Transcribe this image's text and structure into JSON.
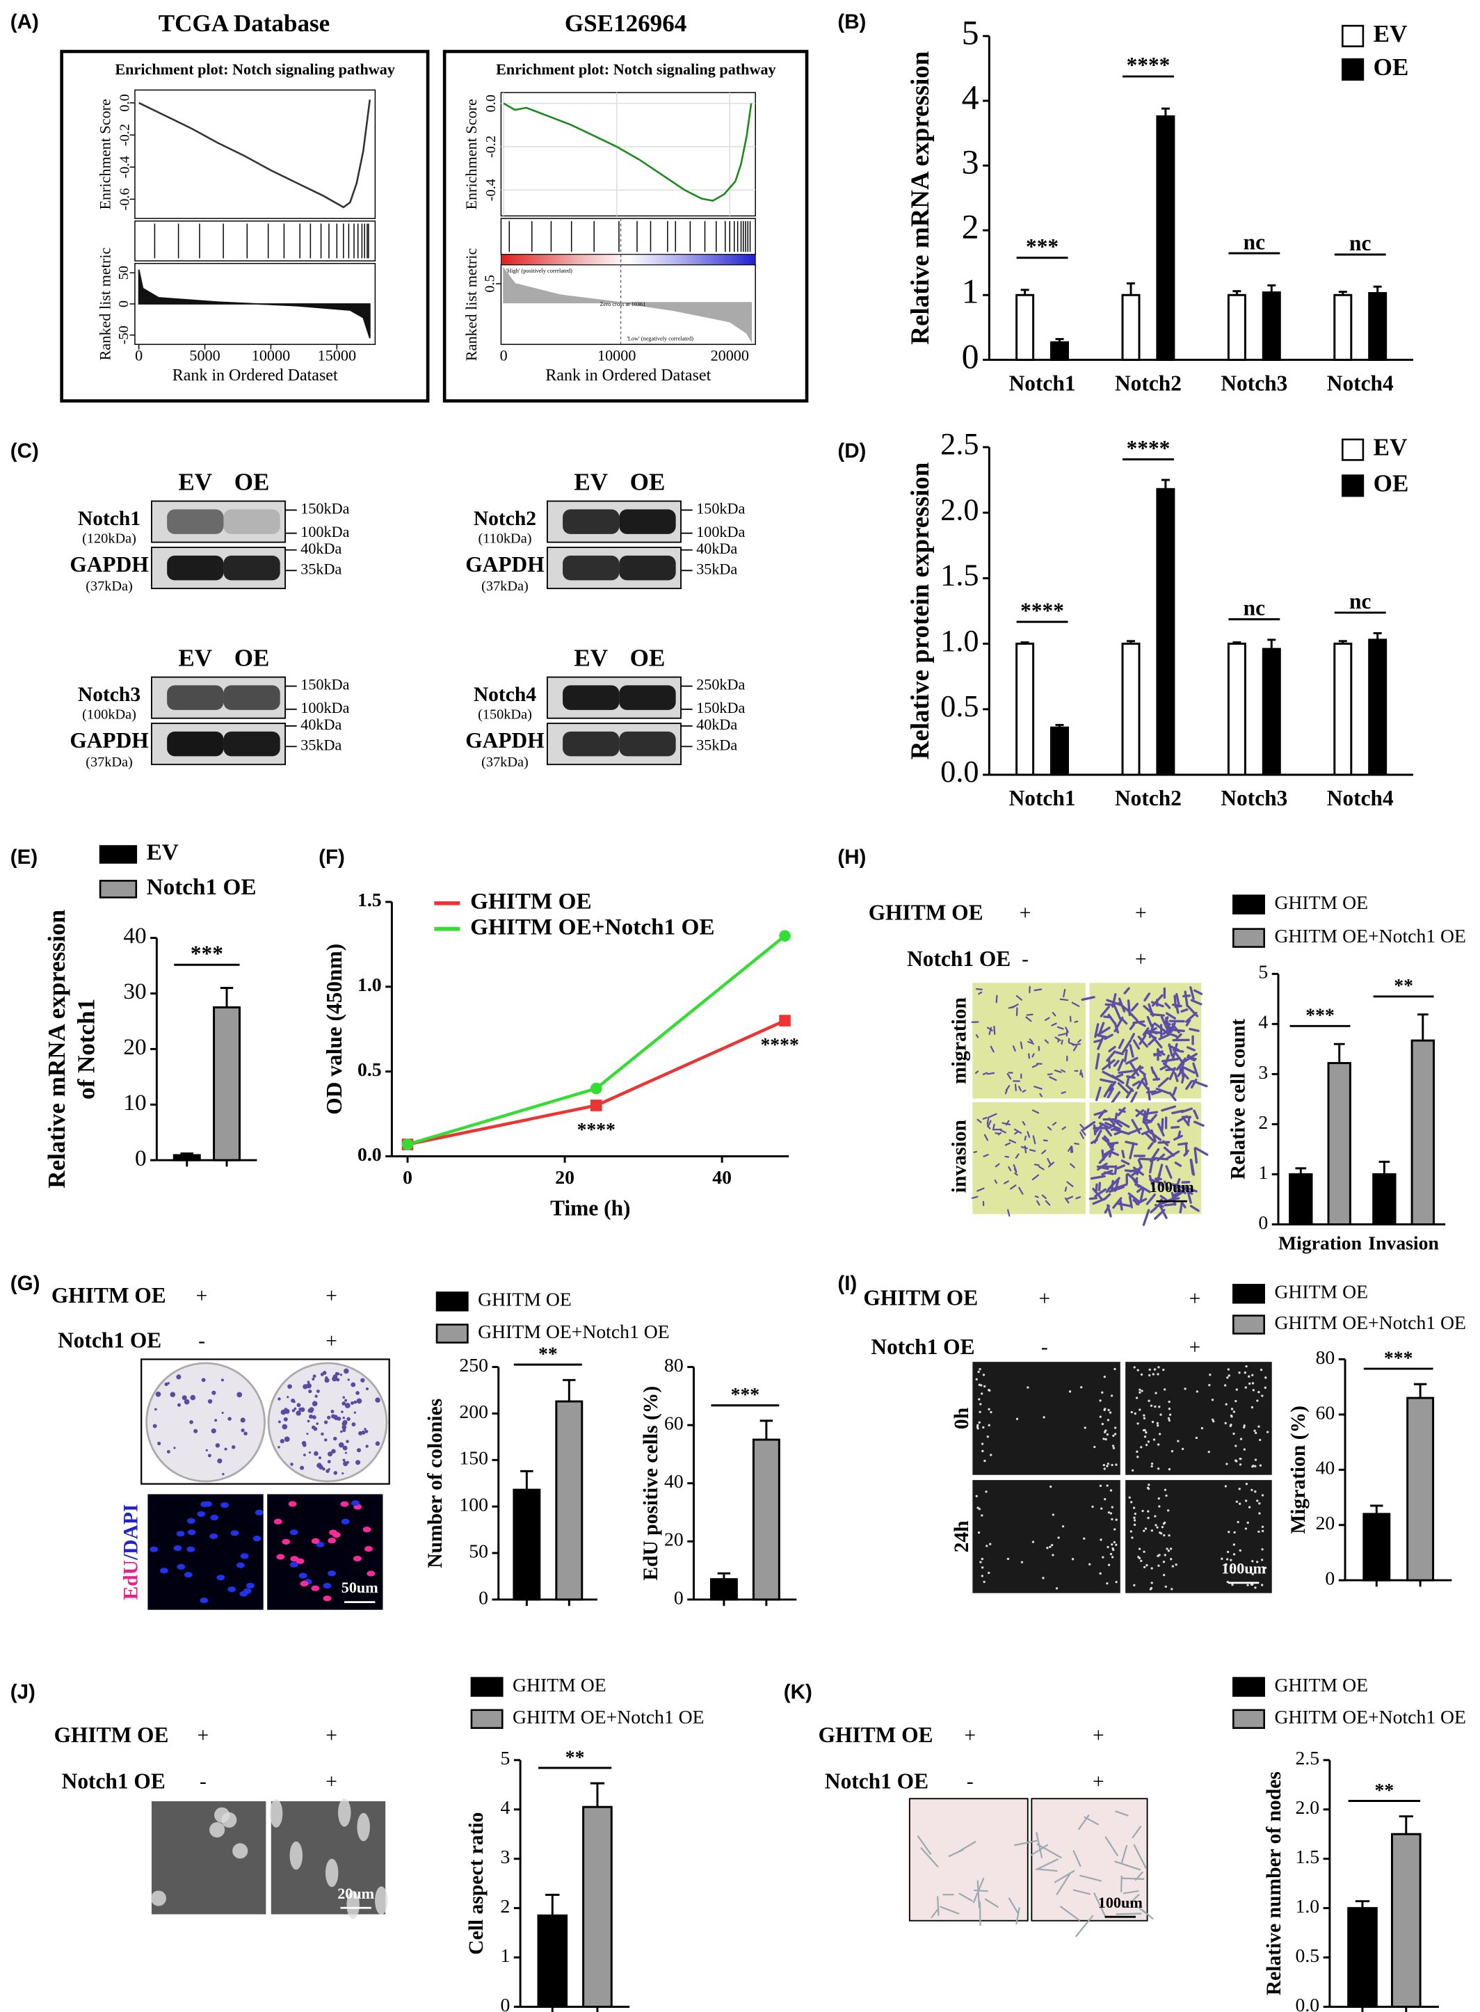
{
  "panel_labels": [
    "(A)",
    "(B)",
    "(C)",
    "(D)",
    "(E)",
    "(F)",
    "(H)",
    "(G)",
    "(I)",
    "(J)",
    "(K)"
  ],
  "chart_data": [
    {
      "type": "gsea",
      "header": "TCGA Database",
      "title": "Enrichment plot: Notch signaling pathway",
      "ylabel": "Enrichment Score",
      "y2label": "Ranked list metric",
      "xlabel": "Rank in Ordered Dataset",
      "x": [
        0,
        2000,
        4000,
        6000,
        8000,
        10000,
        12000,
        14000,
        15500,
        16000,
        16500,
        17000,
        17500
      ],
      "values": [
        0,
        -0.08,
        -0.16,
        -0.25,
        -0.33,
        -0.42,
        -0.5,
        -0.58,
        -0.65,
        -0.62,
        -0.5,
        -0.3,
        0.02
      ],
      "color": "#333333",
      "hits": [
        1200,
        3000,
        4600,
        6400,
        8200,
        9800,
        11000,
        12200,
        13000,
        13800,
        14400,
        15000,
        15500,
        15900,
        16300,
        16600,
        16900,
        17100,
        17300,
        17400
      ],
      "metric_x": [
        0,
        300,
        1500,
        6000,
        12000,
        16000,
        17000,
        17500
      ],
      "metric": [
        55,
        25,
        10,
        3,
        -3,
        -10,
        -22,
        -55
      ],
      "xlim": [
        -300,
        17900
      ],
      "xticks": [
        0,
        5000,
        10000,
        15000
      ],
      "ylim": [
        -0.72,
        0.08
      ],
      "yticks": [
        -0.6,
        -0.4,
        -0.2,
        {
          "value": 0,
          "label": "0.0"
        }
      ],
      "y2lim": [
        -65,
        65
      ],
      "y2ticks": [
        -50,
        0,
        50
      ],
      "grid": false
    },
    {
      "type": "gsea",
      "header": "GSE126964",
      "title": "Enrichment plot: Notch signaling pathway",
      "ylabel": "Enrichment Score",
      "y2label": "Ranked list metric",
      "xlabel": "Rank in Ordered Dataset",
      "x": [
        0,
        1000,
        2000,
        4000,
        6000,
        8000,
        10000,
        12000,
        14000,
        16000,
        17500,
        18500,
        19500,
        20500,
        21000,
        21500,
        21900
      ],
      "values": [
        0,
        -0.03,
        -0.02,
        -0.06,
        -0.1,
        -0.15,
        -0.2,
        -0.26,
        -0.33,
        -0.4,
        -0.44,
        -0.45,
        -0.42,
        -0.36,
        -0.28,
        -0.15,
        0
      ],
      "color": "#1a8a1a",
      "hits": [
        500,
        2500,
        4200,
        6000,
        8000,
        10200,
        11800,
        13000,
        14500,
        15200,
        16500,
        17800,
        18800,
        19600,
        20000,
        20400,
        20700,
        21000,
        21200,
        21400,
        21600,
        21800
      ],
      "metric_x": [
        0,
        1000,
        5000,
        10361,
        15000,
        20000,
        21500,
        21900
      ],
      "metric": [
        0.9,
        0.5,
        0.2,
        0,
        -0.2,
        -0.5,
        -0.8,
        -1.0
      ],
      "zero_cross": 10361,
      "annotations": [
        "'High' (positively correlated)",
        "Zero cross at 10361",
        "'Low' (negatively correlated)"
      ],
      "xlim": [
        -230,
        22270
      ],
      "xticks": [
        0,
        10000,
        20000
      ],
      "ylim": [
        -0.52,
        0.05
      ],
      "yticks": [
        {
          "value": 0,
          "label": "0.0"
        },
        -0.2,
        -0.4
      ],
      "y2lim": [
        -1.1,
        1.0
      ],
      "y2ticks": [
        0.5
      ],
      "grid": true
    },
    {
      "type": "bar",
      "ylabel": "Relative mRNA expression",
      "categories": [
        "Notch1",
        "Notch2",
        "Notch3",
        "Notch4"
      ],
      "series": [
        {
          "name": "EV",
          "color": "#ffffff",
          "values": [
            1,
            1,
            1,
            1
          ],
          "errors": [
            0.08,
            0.18,
            0.06,
            0.05
          ]
        },
        {
          "name": "OE",
          "color": "#000000",
          "values": [
            0.27,
            3.76,
            1.04,
            1.03
          ],
          "errors": [
            0.05,
            0.12,
            0.11,
            0.1
          ]
        }
      ],
      "ylim": [
        0,
        5
      ],
      "yticks": [
        0,
        1,
        2,
        3,
        4,
        5
      ],
      "annotations": [
        "***",
        "****",
        "nc",
        "nc"
      ]
    },
    {
      "type": "bar",
      "ylabel": "Relative protein expression",
      "categories": [
        "Notch1",
        "Notch2",
        "Notch3",
        "Notch4"
      ],
      "series": [
        {
          "name": "EV",
          "color": "#ffffff",
          "values": [
            1,
            1,
            1,
            1
          ],
          "errors": [
            0.01,
            0.02,
            0.01,
            0.02
          ]
        },
        {
          "name": "OE",
          "color": "#000000",
          "values": [
            0.36,
            2.18,
            0.96,
            1.03
          ],
          "errors": [
            0.02,
            0.07,
            0.07,
            0.05
          ]
        }
      ],
      "ylim": [
        0,
        2.5
      ],
      "yticks": [
        {
          "value": 0,
          "label": "0.0"
        },
        {
          "value": 0.5,
          "label": "0.5"
        },
        {
          "value": 1,
          "label": "1.0"
        },
        {
          "value": 1.5,
          "label": "1.5"
        },
        {
          "value": 2,
          "label": "2.0"
        },
        {
          "value": 2.5,
          "label": "2.5"
        }
      ],
      "annotations": [
        "****",
        "****",
        "nc",
        "nc"
      ]
    },
    {
      "type": "bar",
      "ylabel": [
        "Relative mRNA expression",
        "of Notch1"
      ],
      "categories": [
        null
      ],
      "series": [
        {
          "name": "EV",
          "color": "#000000",
          "values": [
            0.9
          ],
          "errors": [
            0.3
          ]
        },
        {
          "name": "Notch1 OE",
          "color": "#999999",
          "values": [
            27.5
          ],
          "errors": [
            3.5
          ]
        }
      ],
      "ylim": [
        0,
        40
      ],
      "yticks": [
        0,
        10,
        20,
        30,
        40
      ],
      "annotations": [
        "***"
      ]
    },
    {
      "type": "line",
      "ylabel": "OD value (450nm)",
      "xlabel": "Time (h)",
      "x": [
        0,
        24,
        48
      ],
      "series": [
        {
          "name": "GHITM OE",
          "color": "#ee3333",
          "marker": "square",
          "values": [
            0.07,
            0.3,
            0.8
          ],
          "annotations": [
            null,
            "****",
            "****"
          ]
        },
        {
          "name": "GHITM OE+Notch1 OE",
          "color": "#33dd33",
          "marker": "circle",
          "values": [
            0.07,
            0.4,
            1.3
          ]
        }
      ],
      "xlim": [
        -2,
        48.5
      ],
      "xticks": [
        0,
        20,
        40
      ],
      "ylim": [
        0,
        1.5
      ],
      "yticks": [
        {
          "value": 0,
          "label": "0.0"
        },
        {
          "value": 0.5,
          "label": "0.5"
        },
        {
          "value": 1,
          "label": "1.0"
        },
        {
          "value": 1.5,
          "label": "1.5"
        }
      ]
    },
    {
      "type": "bar",
      "ylabel": "Relative cell count",
      "categories": [
        "Migration",
        "Invasion"
      ],
      "series": [
        {
          "name": "GHITM OE",
          "color": "#000000",
          "values": [
            1,
            1
          ],
          "errors": [
            0.12,
            0.25
          ]
        },
        {
          "name": "GHITM OE+Notch1 OE",
          "color": "#999999",
          "values": [
            3.22,
            3.67
          ],
          "errors": [
            0.38,
            0.52
          ]
        }
      ],
      "ylim": [
        0,
        5
      ],
      "yticks": [
        0,
        1,
        2,
        3,
        4,
        5
      ],
      "annotations": [
        "***",
        "**"
      ]
    },
    {
      "type": "bar",
      "ylabel": "Number of colonies",
      "categories": [
        null
      ],
      "series": [
        {
          "name": "GHITM OE",
          "color": "#000000",
          "values": [
            118
          ],
          "errors": [
            20
          ]
        },
        {
          "name": "GHITM OE+Notch1 OE",
          "color": "#999999",
          "values": [
            213
          ],
          "errors": [
            23
          ]
        }
      ],
      "ylim": [
        0,
        250
      ],
      "yticks": [
        0,
        50,
        100,
        150,
        200,
        250
      ],
      "annotations": [
        "**"
      ]
    },
    {
      "type": "bar",
      "ylabel": "EdU positive cells (%)",
      "categories": [
        null
      ],
      "series": [
        {
          "color": "#000000",
          "values": [
            7
          ],
          "errors": [
            2
          ]
        },
        {
          "color": "#999999",
          "values": [
            55
          ],
          "errors": [
            6.5
          ]
        }
      ],
      "ylim": [
        0,
        80
      ],
      "yticks": [
        0,
        20,
        40,
        60,
        80
      ],
      "annotations": [
        "***"
      ]
    },
    {
      "type": "bar",
      "ylabel": "Migration (%)",
      "categories": [
        null
      ],
      "series": [
        {
          "name": "GHITM OE",
          "color": "#000000",
          "values": [
            24
          ],
          "errors": [
            3
          ]
        },
        {
          "name": "GHITM OE+Notch1 OE",
          "color": "#999999",
          "values": [
            66
          ],
          "errors": [
            5
          ]
        }
      ],
      "ylim": [
        0,
        80
      ],
      "yticks": [
        0,
        20,
        40,
        60,
        80
      ],
      "annotations": [
        "***"
      ]
    },
    {
      "type": "bar",
      "ylabel": "Cell aspect ratio",
      "categories": [
        null
      ],
      "series": [
        {
          "name": "GHITM OE",
          "color": "#000000",
          "values": [
            1.85
          ],
          "errors": [
            0.42
          ]
        },
        {
          "name": "GHITM OE+Notch1 OE",
          "color": "#999999",
          "values": [
            4.05
          ],
          "errors": [
            0.48
          ]
        }
      ],
      "ylim": [
        0,
        5
      ],
      "yticks": [
        0,
        1,
        2,
        3,
        4,
        5
      ],
      "annotations": [
        "**"
      ]
    },
    {
      "type": "bar",
      "ylabel": "Relative number of nodes",
      "categories": [
        null
      ],
      "series": [
        {
          "name": "GHITM OE",
          "color": "#000000",
          "values": [
            1.0
          ],
          "errors": [
            0.07
          ]
        },
        {
          "name": "GHITM OE+Notch1 OE",
          "color": "#999999",
          "values": [
            1.75
          ],
          "errors": [
            0.18
          ]
        }
      ],
      "ylim": [
        0,
        2.5
      ],
      "yticks": [
        {
          "value": 0,
          "label": "0.0"
        },
        {
          "value": 0.5,
          "label": "0.5"
        },
        {
          "value": 1,
          "label": "1.0"
        },
        {
          "value": 1.5,
          "label": "1.5"
        },
        {
          "value": 2,
          "label": "2.0"
        },
        {
          "value": 2.5,
          "label": "2.5"
        }
      ],
      "annotations": [
        "**"
      ]
    }
  ],
  "blots": [
    {
      "lanes": [
        "EV",
        "OE"
      ],
      "target": "Notch1",
      "target_size": "(120kDa)",
      "control": "GAPDH",
      "control_size": "(37kDa)",
      "markers": [
        "150kDa",
        "100kDa",
        "40kDa",
        "35kDa"
      ]
    },
    {
      "lanes": [
        "EV",
        "OE"
      ],
      "target": "Notch2",
      "target_size": "(110kDa)",
      "control": "GAPDH",
      "control_size": "(37kDa)",
      "markers": [
        "150kDa",
        "100kDa",
        "40kDa",
        "35kDa"
      ]
    },
    {
      "lanes": [
        "EV",
        "OE"
      ],
      "target": "Notch3",
      "target_size": "(100kDa)",
      "control": "GAPDH",
      "control_size": "(37kDa)",
      "markers": [
        "150kDa",
        "100kDa",
        "40kDa",
        "35kDa"
      ]
    },
    {
      "lanes": [
        "EV",
        "OE"
      ],
      "target": "Notch4",
      "target_size": "(150kDa)",
      "control": "GAPDH",
      "control_size": "(37kDa)",
      "markers": [
        "250kDa",
        "150kDa",
        "40kDa",
        "35kDa"
      ]
    }
  ],
  "image_panels": [
    {
      "conditions": [
        {
          "name": "GHITM OE",
          "marks": [
            "+",
            "+"
          ]
        },
        {
          "name": "Notch1 OE",
          "marks": [
            "-",
            "+"
          ]
        }
      ],
      "row_labels": [
        "migration",
        "invasion"
      ],
      "scale": "100um"
    },
    {
      "conditions": [
        {
          "name": "GHITM OE",
          "marks": [
            "+",
            "+"
          ]
        },
        {
          "name": "Notch1 OE",
          "marks": [
            "-",
            "+"
          ]
        }
      ],
      "stain_labels": [
        "EdU",
        "/DAPI"
      ],
      "scale": "50um"
    },
    {
      "conditions": [
        {
          "name": "GHITM OE",
          "marks": [
            "+",
            "+"
          ]
        },
        {
          "name": "Notch1 OE",
          "marks": [
            "-",
            "+"
          ]
        }
      ],
      "row_labels": [
        "0h",
        "24h"
      ],
      "scale": "100um"
    },
    {
      "conditions": [
        {
          "name": "GHITM OE",
          "marks": [
            "+",
            "+"
          ]
        },
        {
          "name": "Notch1 OE",
          "marks": [
            "-",
            "+"
          ]
        }
      ],
      "scale": "20um"
    },
    {
      "conditions": [
        {
          "name": "GHITM OE",
          "marks": [
            "+",
            "+"
          ]
        },
        {
          "name": "Notch1 OE",
          "marks": [
            "-",
            "+"
          ]
        }
      ],
      "scale": "100um"
    }
  ]
}
